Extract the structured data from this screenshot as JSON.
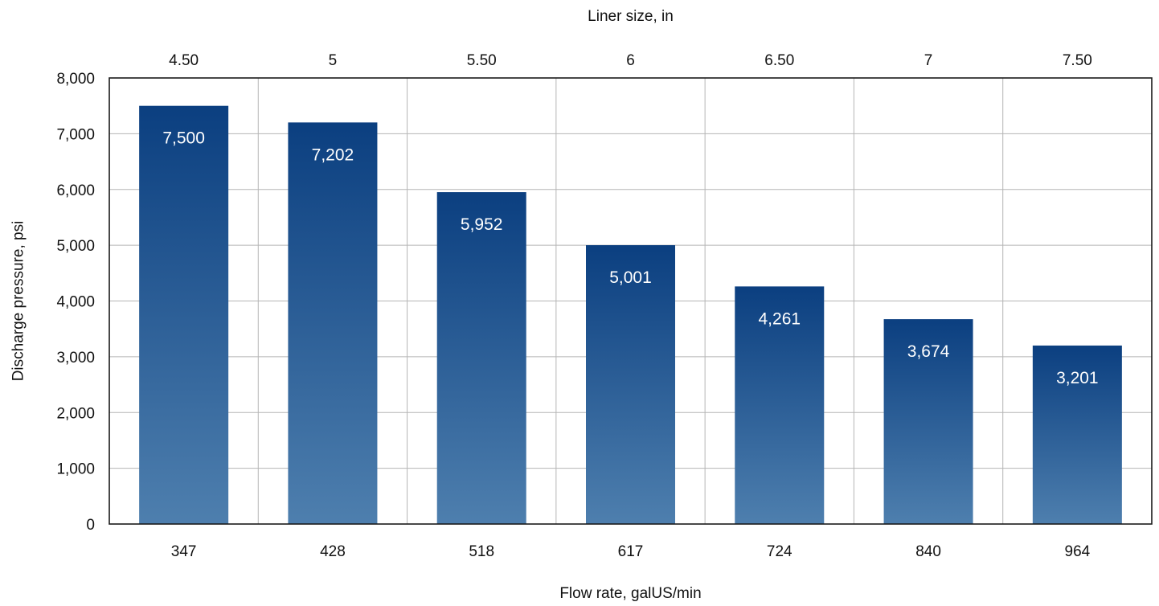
{
  "chart_data": {
    "type": "bar",
    "categories": [
      "347",
      "428",
      "518",
      "617",
      "724",
      "840",
      "964"
    ],
    "secondary_categories": [
      "4.50",
      "5",
      "5.50",
      "6",
      "6.50",
      "7",
      "7.50"
    ],
    "values": [
      7500,
      7202,
      5952,
      5001,
      4261,
      3674,
      3201
    ],
    "data_labels": [
      "7,500",
      "7,202",
      "5,952",
      "5,001",
      "4,261",
      "3,674",
      "3,201"
    ],
    "title": "",
    "xlabel": "Flow rate, galUS/min",
    "x2label": "Liner size, in",
    "ylabel": "Discharge pressure, psi",
    "ylim": [
      0,
      8000
    ],
    "yticks": [
      0,
      1000,
      2000,
      3000,
      4000,
      5000,
      6000,
      7000,
      8000
    ],
    "ytick_labels": [
      "0",
      "1,000",
      "2,000",
      "3,000",
      "4,000",
      "5,000",
      "6,000",
      "7,000",
      "8,000"
    ],
    "grid": true,
    "legend": "none",
    "colors": {
      "bar_top": "#0b3f80",
      "bar_bottom": "#4e7fae",
      "grid": "#b5b5b5",
      "frame": "#1a1a1a",
      "label_on_bar": "#ffffff"
    }
  }
}
